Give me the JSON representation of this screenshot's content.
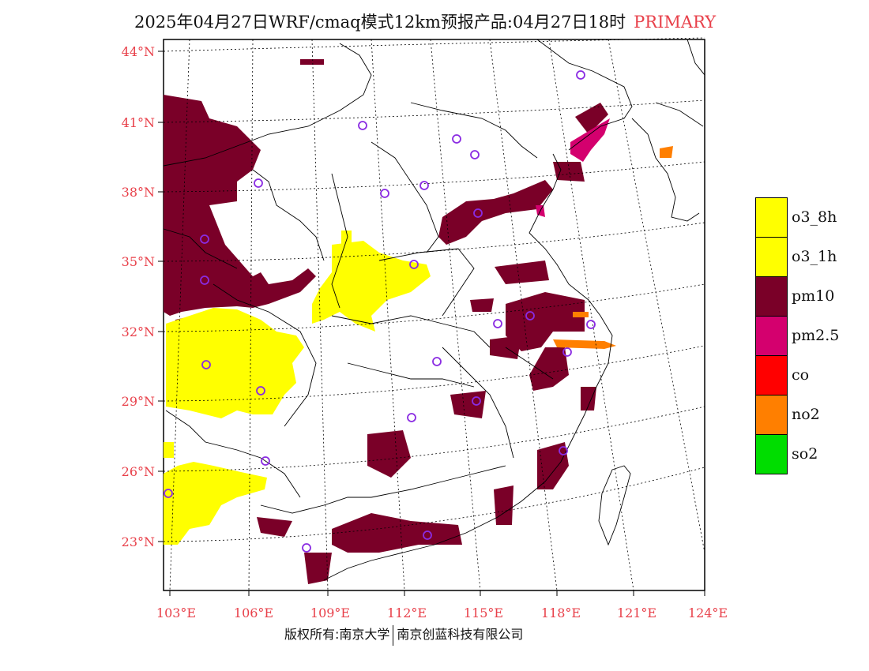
{
  "title": {
    "main": "2025年04月27日WRF/cmaq模式12km预报产品:04月27日18时",
    "tag": "PRIMARY"
  },
  "axes": {
    "lat_labels": [
      "44°N",
      "41°N",
      "38°N",
      "35°N",
      "32°N",
      "29°N",
      "26°N",
      "23°N"
    ],
    "lon_labels": [
      "103°E",
      "106°E",
      "109°E",
      "112°E",
      "115°E",
      "118°E",
      "121°E",
      "124°E"
    ],
    "label_color": "#e8404a"
  },
  "legend": [
    {
      "label": "o3_8h",
      "color": "#ffff00"
    },
    {
      "label": "o3_1h",
      "color": "#ffff00"
    },
    {
      "label": "pm10",
      "color": "#7a0028"
    },
    {
      "label": "pm2.5",
      "color": "#d4006e"
    },
    {
      "label": "co",
      "color": "#ff0000"
    },
    {
      "label": "no2",
      "color": "#ff7f00"
    },
    {
      "label": "so2",
      "color": "#00dd00"
    }
  ],
  "footer": {
    "left": "版权所有:南京大学",
    "right": "南京创蓝科技有限公司"
  },
  "colors": {
    "pm10": "#7a0028",
    "pm25": "#d4006e",
    "o3": "#ffff00",
    "no2": "#ff7f00",
    "station": "#8a2be2"
  }
}
